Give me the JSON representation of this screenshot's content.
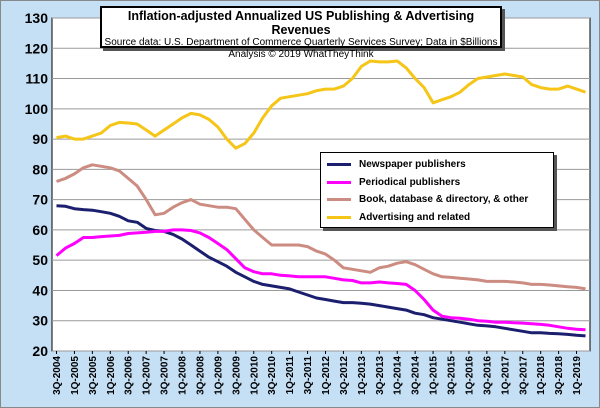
{
  "chart_data": {
    "type": "line",
    "title": "Inflation-adjusted Annualized US Publishing & Advertising Revenues",
    "subtitle": "Source data: U.S. Department of Commerce Quarterly Services Survey; Data in $Billions",
    "credit": "Analysis © 2019 WhatTheyThink",
    "ylim": [
      20,
      130
    ],
    "yticks": [
      20,
      30,
      40,
      50,
      60,
      70,
      80,
      90,
      100,
      110,
      120,
      130
    ],
    "xtick_labels": [
      "3Q-2004",
      "1Q-2005",
      "3Q-2005",
      "1Q-2006",
      "3Q-2006",
      "1Q-2007",
      "3Q-2007",
      "1Q-2008",
      "3Q-2008",
      "1Q-2009",
      "3Q-2009",
      "1Q-2010",
      "3Q-2010",
      "1Q-2011",
      "3Q-2011",
      "1Q-2012",
      "3Q-2012",
      "1Q-2013",
      "3Q-2013",
      "1Q-2014",
      "3Q-2014",
      "1Q-2015",
      "3Q-2015",
      "1Q-2016",
      "3Q-2016",
      "1Q-2017",
      "3Q-2017",
      "1Q-2018",
      "3Q-2018",
      "1Q-2019"
    ],
    "x": [
      "3Q-2004",
      "4Q-2004",
      "1Q-2005",
      "2Q-2005",
      "3Q-2005",
      "4Q-2005",
      "1Q-2006",
      "2Q-2006",
      "3Q-2006",
      "4Q-2006",
      "1Q-2007",
      "2Q-2007",
      "3Q-2007",
      "4Q-2007",
      "1Q-2008",
      "2Q-2008",
      "3Q-2008",
      "4Q-2008",
      "1Q-2009",
      "2Q-2009",
      "3Q-2009",
      "4Q-2009",
      "1Q-2010",
      "2Q-2010",
      "3Q-2010",
      "4Q-2010",
      "1Q-2011",
      "2Q-2011",
      "3Q-2011",
      "4Q-2011",
      "1Q-2012",
      "2Q-2012",
      "3Q-2012",
      "4Q-2012",
      "1Q-2013",
      "2Q-2013",
      "3Q-2013",
      "4Q-2013",
      "1Q-2014",
      "2Q-2014",
      "3Q-2014",
      "4Q-2014",
      "1Q-2015",
      "2Q-2015",
      "3Q-2015",
      "4Q-2015",
      "1Q-2016",
      "2Q-2016",
      "3Q-2016",
      "4Q-2016",
      "1Q-2017",
      "2Q-2017",
      "3Q-2017",
      "4Q-2017",
      "1Q-2018",
      "2Q-2018",
      "3Q-2018",
      "4Q-2018",
      "1Q-2019",
      "2Q-2019"
    ],
    "series": [
      {
        "name": "Newspaper publishers",
        "color": "#1b1f6e",
        "values": [
          68,
          67.8,
          67,
          66.7,
          66.5,
          66,
          65.5,
          64.5,
          63,
          62.5,
          60.5,
          59.8,
          59.5,
          58.5,
          57,
          55,
          53,
          51,
          49.5,
          48,
          46,
          44.5,
          43,
          42,
          41.5,
          41,
          40.5,
          39.5,
          38.5,
          37.5,
          37,
          36.5,
          36,
          36,
          35.8,
          35.5,
          35,
          34.5,
          34,
          33.5,
          32.5,
          32,
          31,
          30.5,
          30,
          29.5,
          29,
          28.5,
          28.3,
          28,
          27.5,
          27,
          26.5,
          26,
          26,
          25.8,
          25.7,
          25.5,
          25.2,
          25
        ]
      },
      {
        "name": "Periodical publishers",
        "color": "#ff00ff",
        "values": [
          51.5,
          54,
          55.5,
          57.5,
          57.5,
          57.8,
          58,
          58.2,
          58.8,
          59,
          59.2,
          59.5,
          59.5,
          60,
          60,
          59.8,
          59,
          57.5,
          55.5,
          53.5,
          50.5,
          47.5,
          46.2,
          45.5,
          45.5,
          45,
          44.8,
          44.5,
          44.5,
          44.5,
          44.5,
          44,
          43.5,
          43.3,
          42.5,
          42.5,
          42.8,
          42.5,
          42.3,
          42,
          40,
          37,
          33.5,
          31.5,
          31,
          30.8,
          30.5,
          30,
          29.8,
          29.5,
          29.5,
          29.3,
          29.2,
          29,
          28.8,
          28.5,
          28,
          27.5,
          27.2,
          27
        ]
      },
      {
        "name": "Book, database & directory, & other",
        "color": "#cc8c82",
        "values": [
          76,
          77,
          78.5,
          80.5,
          81.5,
          81,
          80.5,
          79.5,
          77,
          74.5,
          70,
          65,
          65.5,
          67.5,
          69,
          70,
          68.5,
          68,
          67.5,
          67.5,
          67,
          63.5,
          60,
          57.5,
          55,
          55,
          55,
          55,
          54.5,
          53,
          52,
          50,
          47.5,
          47,
          46.5,
          46,
          47.5,
          48,
          49,
          49.5,
          48.5,
          47,
          45.5,
          44.5,
          44.3,
          44,
          43.8,
          43.5,
          43,
          43,
          43,
          42.8,
          42.5,
          42,
          42,
          41.8,
          41.5,
          41.2,
          41,
          40.5
        ]
      },
      {
        "name": "Advertising and related",
        "color": "#f5c518",
        "values": [
          90.5,
          91,
          90,
          90,
          91,
          92,
          94.5,
          95.5,
          95.3,
          95,
          93,
          91,
          93,
          95,
          97,
          98.5,
          98,
          96.5,
          94,
          90,
          87,
          88.5,
          92,
          97,
          101,
          103.5,
          104,
          104.5,
          105,
          106,
          106.5,
          106.5,
          107.5,
          110,
          114,
          115.8,
          115.5,
          115.5,
          115.8,
          113.5,
          110,
          107,
          102,
          103,
          104,
          105.5,
          108,
          110,
          110.5,
          111,
          111.5,
          111,
          110.5,
          108,
          107,
          106.5,
          106.5,
          107.5,
          106.5,
          105.5
        ]
      }
    ],
    "legend": "inside-right"
  }
}
